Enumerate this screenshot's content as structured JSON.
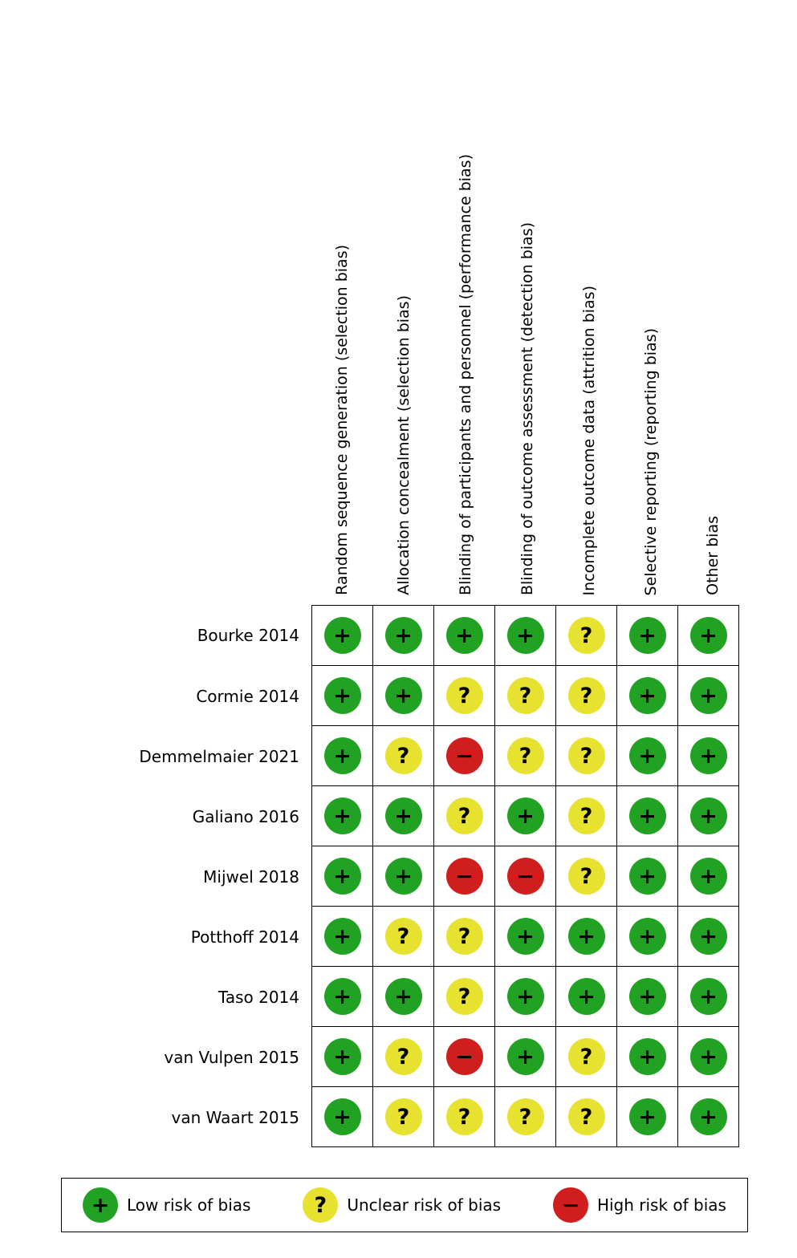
{
  "chart_data": {
    "type": "heatmap",
    "title": "",
    "x_labels": [
      "Random sequence generation (selection bias)",
      "Allocation concealment (selection bias)",
      "Blinding of participants and personnel (performance bias)",
      "Blinding of outcome assessment (detection bias)",
      "Incomplete outcome data (attrition bias)",
      "Selective reporting (reporting bias)",
      "Other bias"
    ],
    "y_labels": [
      "Bourke 2014",
      "Cormie 2014",
      "Demmelmaier 2021",
      "Galiano 2016",
      "Mijwel 2018",
      "Potthoff 2014",
      "Taso 2014",
      "van Vulpen 2015",
      "van Waart 2015"
    ],
    "values": [
      [
        "low",
        "low",
        "low",
        "low",
        "unclear",
        "low",
        "low"
      ],
      [
        "low",
        "low",
        "unclear",
        "unclear",
        "unclear",
        "low",
        "low"
      ],
      [
        "low",
        "unclear",
        "high",
        "unclear",
        "unclear",
        "low",
        "low"
      ],
      [
        "low",
        "low",
        "unclear",
        "low",
        "unclear",
        "low",
        "low"
      ],
      [
        "low",
        "low",
        "high",
        "high",
        "unclear",
        "low",
        "low"
      ],
      [
        "low",
        "unclear",
        "unclear",
        "low",
        "low",
        "low",
        "low"
      ],
      [
        "low",
        "low",
        "unclear",
        "low",
        "low",
        "low",
        "low"
      ],
      [
        "low",
        "unclear",
        "high",
        "low",
        "unclear",
        "low",
        "low"
      ],
      [
        "low",
        "unclear",
        "unclear",
        "unclear",
        "unclear",
        "low",
        "low"
      ]
    ],
    "legend_position": "bottom",
    "value_key": {
      "low": "Low risk of bias (green circle, +)",
      "unclear": "Unclear risk of bias (yellow circle, ?)",
      "high": "High risk of bias (red circle, −)"
    }
  },
  "ratings": {
    "low": {
      "symbol": "+",
      "color": "#22a222",
      "label": "Low risk of bias"
    },
    "unclear": {
      "symbol": "?",
      "color": "#e7e22f",
      "label": "Unclear risk of bias"
    },
    "high": {
      "symbol": "−",
      "color": "#d01d1d",
      "label": "High risk of bias"
    }
  },
  "legend": [
    "low",
    "unclear",
    "high"
  ]
}
